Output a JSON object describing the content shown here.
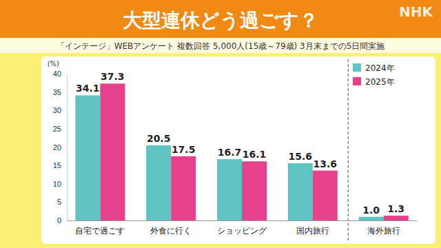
{
  "chart_data": {
    "type": "bar",
    "title": "大型連休どう過ごす？",
    "subtitle": "「インテージ」WEBアンケート 複数回答 5,000人(15歳～79歳) 3月末までの5日間実施",
    "source": "NHK",
    "y_label": "(%)",
    "categories": [
      "自宅で過ごす",
      "外食に行く",
      "ショッピング",
      "国内旅行",
      "海外旅行"
    ],
    "series": [
      {
        "name": "2024年",
        "color": "#5ec4c1",
        "values": [
          34.1,
          20.5,
          16.7,
          15.6,
          1.0
        ],
        "value_labels": [
          "34.1",
          "20.5",
          "16.7",
          "15.6",
          "1.0"
        ]
      },
      {
        "name": "2025年",
        "color": "#e8418c",
        "values": [
          37.3,
          17.5,
          16.1,
          13.6,
          1.3
        ],
        "value_labels": [
          "37.3",
          "17.5",
          "16.1",
          "13.6",
          "1.3"
        ]
      }
    ],
    "ylim": [
      0,
      40
    ],
    "yticks": [
      0,
      5,
      10,
      15,
      20,
      25,
      30,
      35,
      40
    ],
    "grid": false,
    "legend": "upper right",
    "data_labels": true
  }
}
